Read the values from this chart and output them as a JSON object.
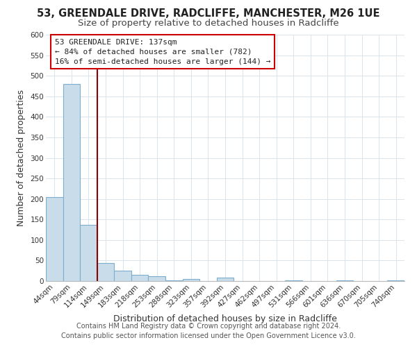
{
  "title": "53, GREENDALE DRIVE, RADCLIFFE, MANCHESTER, M26 1UE",
  "subtitle": "Size of property relative to detached houses in Radcliffe",
  "xlabel": "Distribution of detached houses by size in Radcliffe",
  "ylabel": "Number of detached properties",
  "footer_line1": "Contains HM Land Registry data © Crown copyright and database right 2024.",
  "footer_line2": "Contains public sector information licensed under the Open Government Licence v3.0.",
  "bar_labels": [
    "44sqm",
    "79sqm",
    "114sqm",
    "149sqm",
    "183sqm",
    "218sqm",
    "253sqm",
    "288sqm",
    "323sqm",
    "357sqm",
    "392sqm",
    "427sqm",
    "462sqm",
    "497sqm",
    "531sqm",
    "566sqm",
    "601sqm",
    "636sqm",
    "670sqm",
    "705sqm",
    "740sqm"
  ],
  "bar_values": [
    205,
    480,
    137,
    44,
    25,
    15,
    11,
    2,
    5,
    0,
    9,
    0,
    0,
    0,
    2,
    0,
    0,
    2,
    0,
    0,
    1
  ],
  "bar_color": "#c8dcea",
  "bar_edge_color": "#7daece",
  "grid_color": "#d8e4ec",
  "annotation_box_text": "53 GREENDALE DRIVE: 137sqm\n← 84% of detached houses are smaller (782)\n16% of semi-detached houses are larger (144) →",
  "vline_x_index": 2.5,
  "vline_color": "#8b0000",
  "ylim": [
    0,
    600
  ],
  "yticks": [
    0,
    50,
    100,
    150,
    200,
    250,
    300,
    350,
    400,
    450,
    500,
    550,
    600
  ],
  "title_fontsize": 10.5,
  "subtitle_fontsize": 9.5,
  "axis_label_fontsize": 9,
  "tick_fontsize": 7.5,
  "annotation_fontsize": 8,
  "footer_fontsize": 7,
  "background_color": "#ffffff"
}
